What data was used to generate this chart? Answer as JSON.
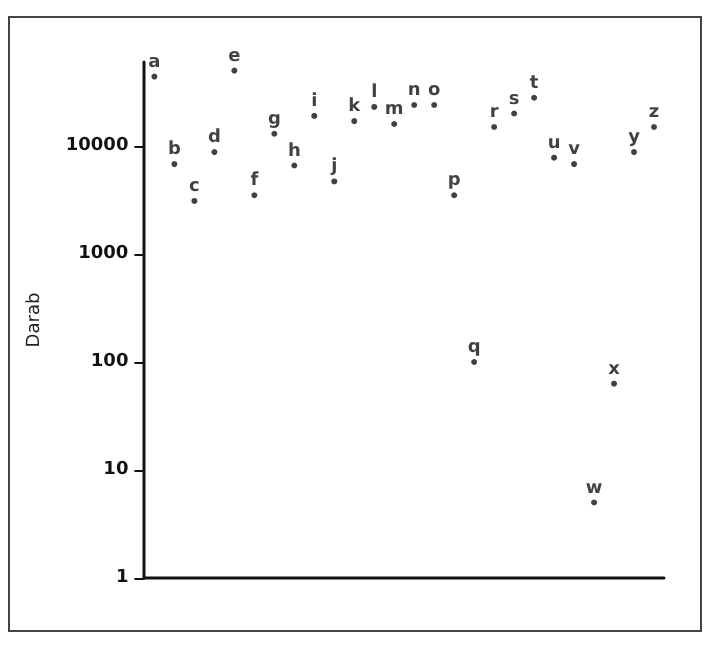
{
  "chart_data": {
    "type": "scatter",
    "ylabel": "Darab",
    "categories": [
      null,
      null,
      null,
      null,
      null,
      null,
      null,
      null,
      null,
      null,
      null,
      null,
      null,
      null,
      null,
      null,
      null,
      null,
      null,
      null,
      null,
      null,
      null,
      null,
      null,
      null
    ],
    "values": [
      44000,
      6800,
      3100,
      8800,
      50000,
      3500,
      13000,
      6600,
      19000,
      4700,
      17000,
      23000,
      16000,
      24000,
      24000,
      3500,
      100,
      15000,
      20000,
      28000,
      7800,
      6800,
      5,
      63,
      8800,
      15000
    ],
    "value_labels": [
      "a",
      "b",
      "c",
      "d",
      "e",
      "f",
      "g",
      "h",
      "i",
      "j",
      "k",
      "l",
      "m",
      "n",
      "o",
      "p",
      "q",
      "r",
      "s",
      "t",
      "u",
      "v",
      "w",
      "x",
      "y",
      "z"
    ],
    "color": "#111111",
    "marker": "none",
    "log": true,
    "ylim": [
      1,
      60000
    ],
    "yticks": [
      1,
      10,
      100,
      1000,
      10000
    ]
  }
}
